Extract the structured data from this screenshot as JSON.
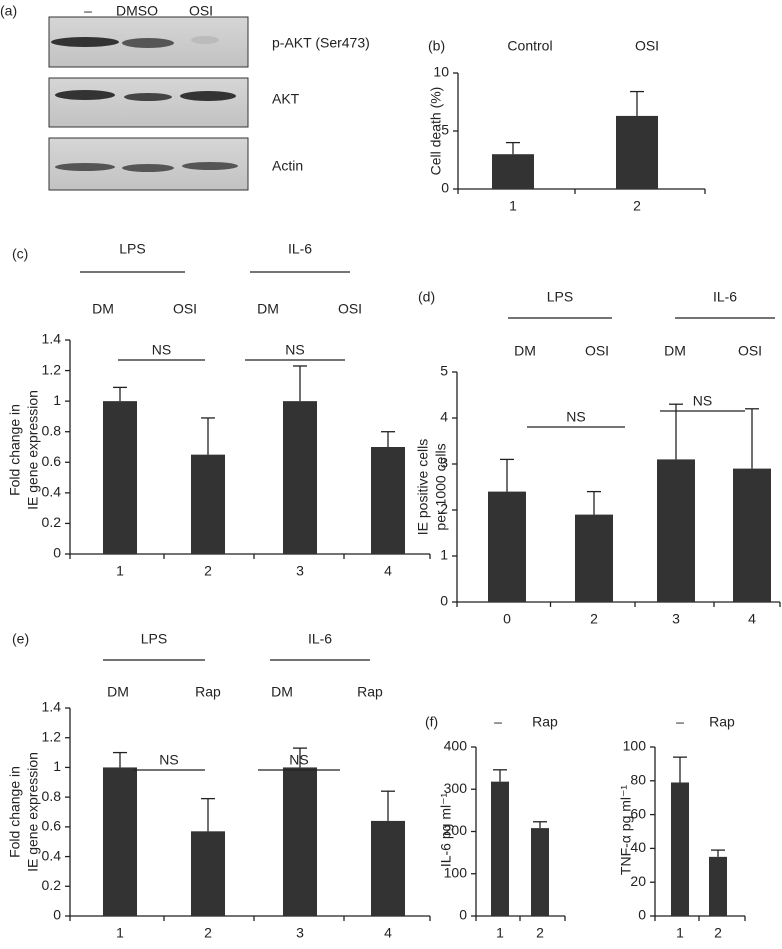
{
  "blot": {
    "panel_label": "(a)",
    "lanes": [
      "–",
      "DMSO",
      "OSI"
    ],
    "rows": [
      "p-AKT (Ser473)",
      "AKT",
      "Actin"
    ]
  },
  "chart_data": [
    {
      "type": "bar",
      "panel_label": "(b)",
      "column_labels": [
        "Control",
        "OSI"
      ],
      "ylabel": [
        "Cell death (%)"
      ],
      "categories": [
        "1",
        "2"
      ],
      "values": [
        3,
        6.3
      ],
      "errors": [
        1,
        2.1
      ],
      "color": "#333333",
      "ylim": [
        0,
        10
      ],
      "yticks": [
        0,
        5,
        10
      ]
    },
    {
      "type": "bar",
      "panel_label": "(c)",
      "groups": [
        "LPS",
        "IL-6"
      ],
      "column_labels": [
        "DM",
        "OSI",
        "DM",
        "OSI"
      ],
      "annotations": [
        "NS",
        "NS"
      ],
      "ylabel": [
        "Fold change in",
        "IE gene expression"
      ],
      "categories": [
        "1",
        "2",
        "3",
        "4"
      ],
      "values": [
        1,
        0.65,
        1,
        0.7
      ],
      "errors": [
        0.09,
        0.24,
        0.23,
        0.1
      ],
      "color": "#333333",
      "ylim": [
        0,
        1.4
      ],
      "yticks": [
        0,
        0.2,
        0.4,
        0.6,
        0.8,
        1,
        1.2,
        1.4
      ]
    },
    {
      "type": "bar",
      "panel_label": "(d)",
      "groups": [
        "LPS",
        "IL-6"
      ],
      "column_labels": [
        "DM",
        "OSI",
        "DM",
        "OSI"
      ],
      "annotations": [
        "NS",
        "NS"
      ],
      "ylabel": [
        "IE positive cells",
        "per 1000 cells"
      ],
      "categories": [
        "0",
        "2",
        "3",
        "4"
      ],
      "values": [
        2.4,
        1.9,
        3.1,
        2.9
      ],
      "errors": [
        0.7,
        0.5,
        1.2,
        1.3
      ],
      "color": "#333333",
      "ylim": [
        0,
        5
      ],
      "yticks": [
        0,
        1,
        2,
        3,
        4,
        5
      ]
    },
    {
      "type": "bar",
      "panel_label": "(e)",
      "groups": [
        "LPS",
        "IL-6"
      ],
      "column_labels": [
        "DM",
        "Rap",
        "DM",
        "Rap"
      ],
      "annotations": [
        "NS",
        "NS"
      ],
      "ylabel": [
        "Fold change in",
        "IE gene expression"
      ],
      "categories": [
        "1",
        "2",
        "3",
        "4"
      ],
      "values": [
        1,
        0.57,
        1,
        0.64
      ],
      "errors": [
        0.1,
        0.22,
        0.13,
        0.2
      ],
      "color": "#333333",
      "ylim": [
        0,
        1.4
      ],
      "yticks": [
        0,
        0.2,
        0.4,
        0.6,
        0.8,
        1,
        1.2,
        1.4
      ]
    },
    {
      "type": "bar",
      "panel_label": "(f)",
      "column_labels": [
        "–",
        "Rap"
      ],
      "ylabel": [
        "IL-6 pg ml⁻¹"
      ],
      "categories": [
        "1",
        "2"
      ],
      "values": [
        318,
        208
      ],
      "errors": [
        28,
        15
      ],
      "color": "#333333",
      "ylim": [
        0,
        400
      ],
      "yticks": [
        0,
        100,
        200,
        300,
        400
      ]
    },
    {
      "type": "bar",
      "column_labels": [
        "–",
        "Rap"
      ],
      "ylabel": [
        "TNF-α pg ml⁻¹"
      ],
      "categories": [
        "1",
        "2"
      ],
      "values": [
        79,
        35
      ],
      "errors": [
        15,
        4
      ],
      "color": "#333333",
      "ylim": [
        0,
        100
      ],
      "yticks": [
        0,
        20,
        40,
        60,
        80,
        100
      ]
    }
  ]
}
